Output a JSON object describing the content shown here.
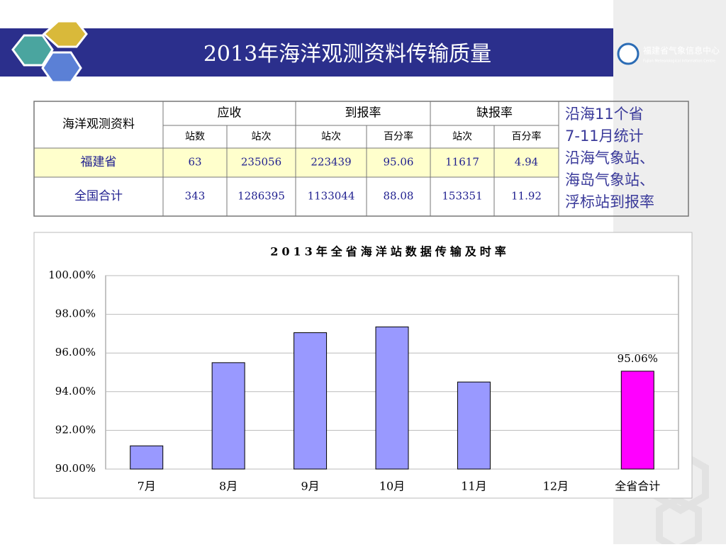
{
  "header": {
    "title": "2013年海洋观测资料传输质量",
    "logo_name": "福建省气象信息中心",
    "logo_subtitle": "Fujian Meteorological Information Centre"
  },
  "table": {
    "header": [
      "海洋观测资料",
      "应收",
      "到报率",
      "缺报率"
    ],
    "subheader": [
      "站数",
      "站次",
      "站次",
      "百分率",
      "站次",
      "百分率"
    ],
    "rows": [
      [
        "福建省",
        63,
        235056,
        223439,
        95.06,
        11617,
        4.94
      ],
      [
        "全国合计",
        343,
        1286395,
        1133044,
        88.08,
        153351,
        11.92
      ]
    ]
  },
  "note": [
    "沿海11个省",
    "7-11月统计",
    "沿海气象站、",
    "海岛气象站、",
    "浮标站到报率"
  ],
  "chart_data": {
    "type": "bar",
    "title": "2013年全省海洋站数据传输及时率",
    "categories": [
      "7月",
      "8月",
      "9月",
      "10月",
      "11月",
      "12月",
      "全省合计"
    ],
    "values": [
      91.2,
      95.5,
      97.05,
      97.35,
      94.5,
      null,
      95.06
    ],
    "value_labels": [
      null,
      null,
      null,
      null,
      null,
      null,
      "95.06%"
    ],
    "colors": [
      "#9999ff",
      "#9999ff",
      "#9999ff",
      "#9999ff",
      "#9999ff",
      "#9999ff",
      "#ff00ff"
    ],
    "ylim": [
      90,
      100
    ],
    "yticks": [
      {
        "value": 90,
        "label": "90.00%"
      },
      {
        "value": 92,
        "label": "92.00%"
      },
      {
        "value": 94,
        "label": "94.00%"
      },
      {
        "value": 96,
        "label": "96.00%"
      },
      {
        "value": 98,
        "label": "98.00%"
      },
      {
        "value": 100,
        "label": "100.00%"
      }
    ],
    "grid": true
  }
}
